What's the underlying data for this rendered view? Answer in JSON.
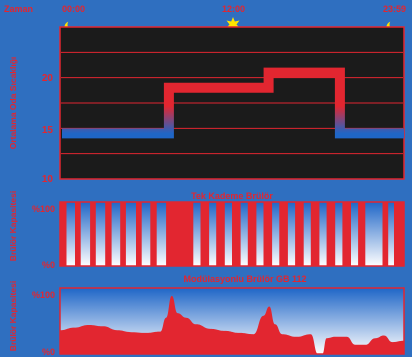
{
  "header": {
    "zaman_label": "Zaman",
    "time_start": "00:00",
    "time_mid": "12:00",
    "time_end": "23:59",
    "icons": [
      "moon-icon",
      "sun-icon",
      "moon-icon"
    ]
  },
  "colors": {
    "background": "#2f6fc0",
    "red": "#e22630",
    "blue": "#1f66c7",
    "white": "#ffffff",
    "yellow": "#ffe500",
    "plot_bg": "#1b1b1b"
  },
  "chart_data": [
    {
      "type": "line",
      "title": "",
      "ylabel": "Ortalama Oda Sıcaklığı",
      "xlabel": "",
      "x_ticks": [
        "00:00",
        "12:00",
        "23:59"
      ],
      "y_ticks": [
        "10",
        "15",
        "20"
      ],
      "ylim": [
        10,
        25
      ],
      "xlim": [
        0,
        24
      ],
      "grid": true,
      "series": [
        {
          "x": [
            0,
            7.5,
            7.5,
            14.5,
            14.5,
            19.5,
            19.5,
            24
          ],
          "y": [
            14.5,
            14.5,
            19,
            19,
            20.5,
            20.5,
            14.5,
            14.5
          ]
        }
      ]
    },
    {
      "type": "bar",
      "title": "Tek Kademe Brülör",
      "ylabel": "Brülör Kapasitesi",
      "y_ticks": [
        "%0",
        "%100"
      ],
      "ylim": [
        0,
        100
      ],
      "xlim": [
        0,
        24
      ],
      "on_intervals": [
        [
          0.0,
          0.45
        ],
        [
          1.05,
          1.45
        ],
        [
          2.1,
          2.5
        ],
        [
          3.15,
          3.6
        ],
        [
          4.2,
          4.6
        ],
        [
          5.3,
          5.7
        ],
        [
          6.3,
          6.75
        ],
        [
          7.4,
          9.3
        ],
        [
          9.8,
          10.4
        ],
        [
          10.9,
          11.5
        ],
        [
          12.0,
          12.6
        ],
        [
          13.1,
          13.7
        ],
        [
          14.2,
          14.8
        ],
        [
          15.3,
          15.9
        ],
        [
          16.4,
          17.0
        ],
        [
          17.5,
          18.1
        ],
        [
          18.6,
          19.2
        ],
        [
          19.7,
          20.3
        ],
        [
          20.8,
          21.3
        ],
        [
          22.5,
          22.9
        ],
        [
          23.3,
          24.0
        ]
      ]
    },
    {
      "type": "area",
      "title": "Modülasyonlu Brülör GB 112",
      "ylabel": "Brülör Kapasitesi",
      "y_ticks": [
        "%0",
        "%100"
      ],
      "ylim": [
        0,
        100
      ],
      "xlim": [
        0,
        24
      ],
      "x": [
        0,
        1,
        2,
        3,
        4,
        5,
        6,
        7,
        7.4,
        7.8,
        8.2,
        8.8,
        9.5,
        10.5,
        11.5,
        12.5,
        13.5,
        14.2,
        14.6,
        15.0,
        15.5,
        16.5,
        17.5,
        18.0,
        18.3,
        18.6,
        19.2,
        20.0,
        20.6,
        21.3,
        22.0,
        22.6,
        23.2,
        24.0
      ],
      "y": [
        36,
        40,
        44,
        42,
        36,
        33,
        32,
        34,
        55,
        88,
        62,
        55,
        45,
        38,
        35,
        32,
        30,
        58,
        72,
        45,
        30,
        26,
        30,
        0,
        0,
        24,
        26,
        26,
        14,
        14,
        24,
        28,
        18,
        20
      ]
    }
  ]
}
